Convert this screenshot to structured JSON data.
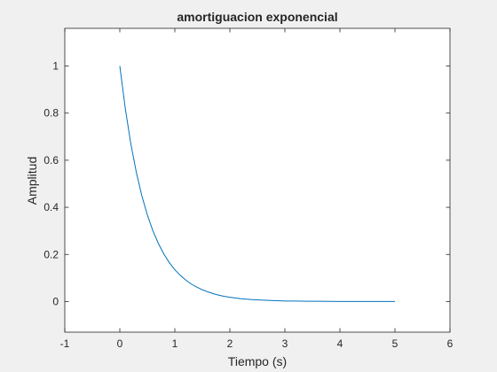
{
  "chart_data": {
    "type": "line",
    "title": "amortiguacion exponencial",
    "xlabel": "Tiempo (s)",
    "ylabel": "Amplitud",
    "xlim": [
      -1,
      6
    ],
    "ylim": [
      -0.13,
      1.16
    ],
    "xticks": [
      -1,
      0,
      1,
      2,
      3,
      4,
      5,
      6
    ],
    "yticks": [
      0,
      0.2,
      0.4,
      0.6,
      0.8,
      1
    ],
    "xtick_labels": [
      "-1",
      "0",
      "1",
      "2",
      "3",
      "4",
      "5",
      "6"
    ],
    "ytick_labels": [
      "0",
      "0.2",
      "0.4",
      "0.6",
      "0.8",
      "1"
    ],
    "grid": false,
    "series": [
      {
        "color": "#0072bd",
        "x": [
          0,
          0.1,
          0.2,
          0.3,
          0.4,
          0.5,
          0.6,
          0.7,
          0.8,
          0.9,
          1.0,
          1.1,
          1.2,
          1.3,
          1.4,
          1.5,
          1.6,
          1.7,
          1.8,
          1.9,
          2.0,
          2.2,
          2.4,
          2.6,
          2.8,
          3.0,
          3.2,
          3.4,
          3.6,
          3.8,
          4.0,
          4.25,
          4.5,
          4.75,
          5.0
        ],
        "y": [
          1.0,
          0.819,
          0.67,
          0.549,
          0.449,
          0.368,
          0.301,
          0.247,
          0.202,
          0.165,
          0.135,
          0.111,
          0.091,
          0.074,
          0.061,
          0.05,
          0.041,
          0.033,
          0.027,
          0.022,
          0.018,
          0.012,
          0.008,
          0.006,
          0.004,
          0.002,
          0.002,
          0.001,
          0.001,
          0.0005,
          0.0003,
          0.0002,
          0.0001,
          0.0001,
          0.0
        ]
      }
    ]
  },
  "colors": {
    "figure_background": "#f0f0f0",
    "axes_background": "#ffffff",
    "axis_color": "#262626"
  }
}
